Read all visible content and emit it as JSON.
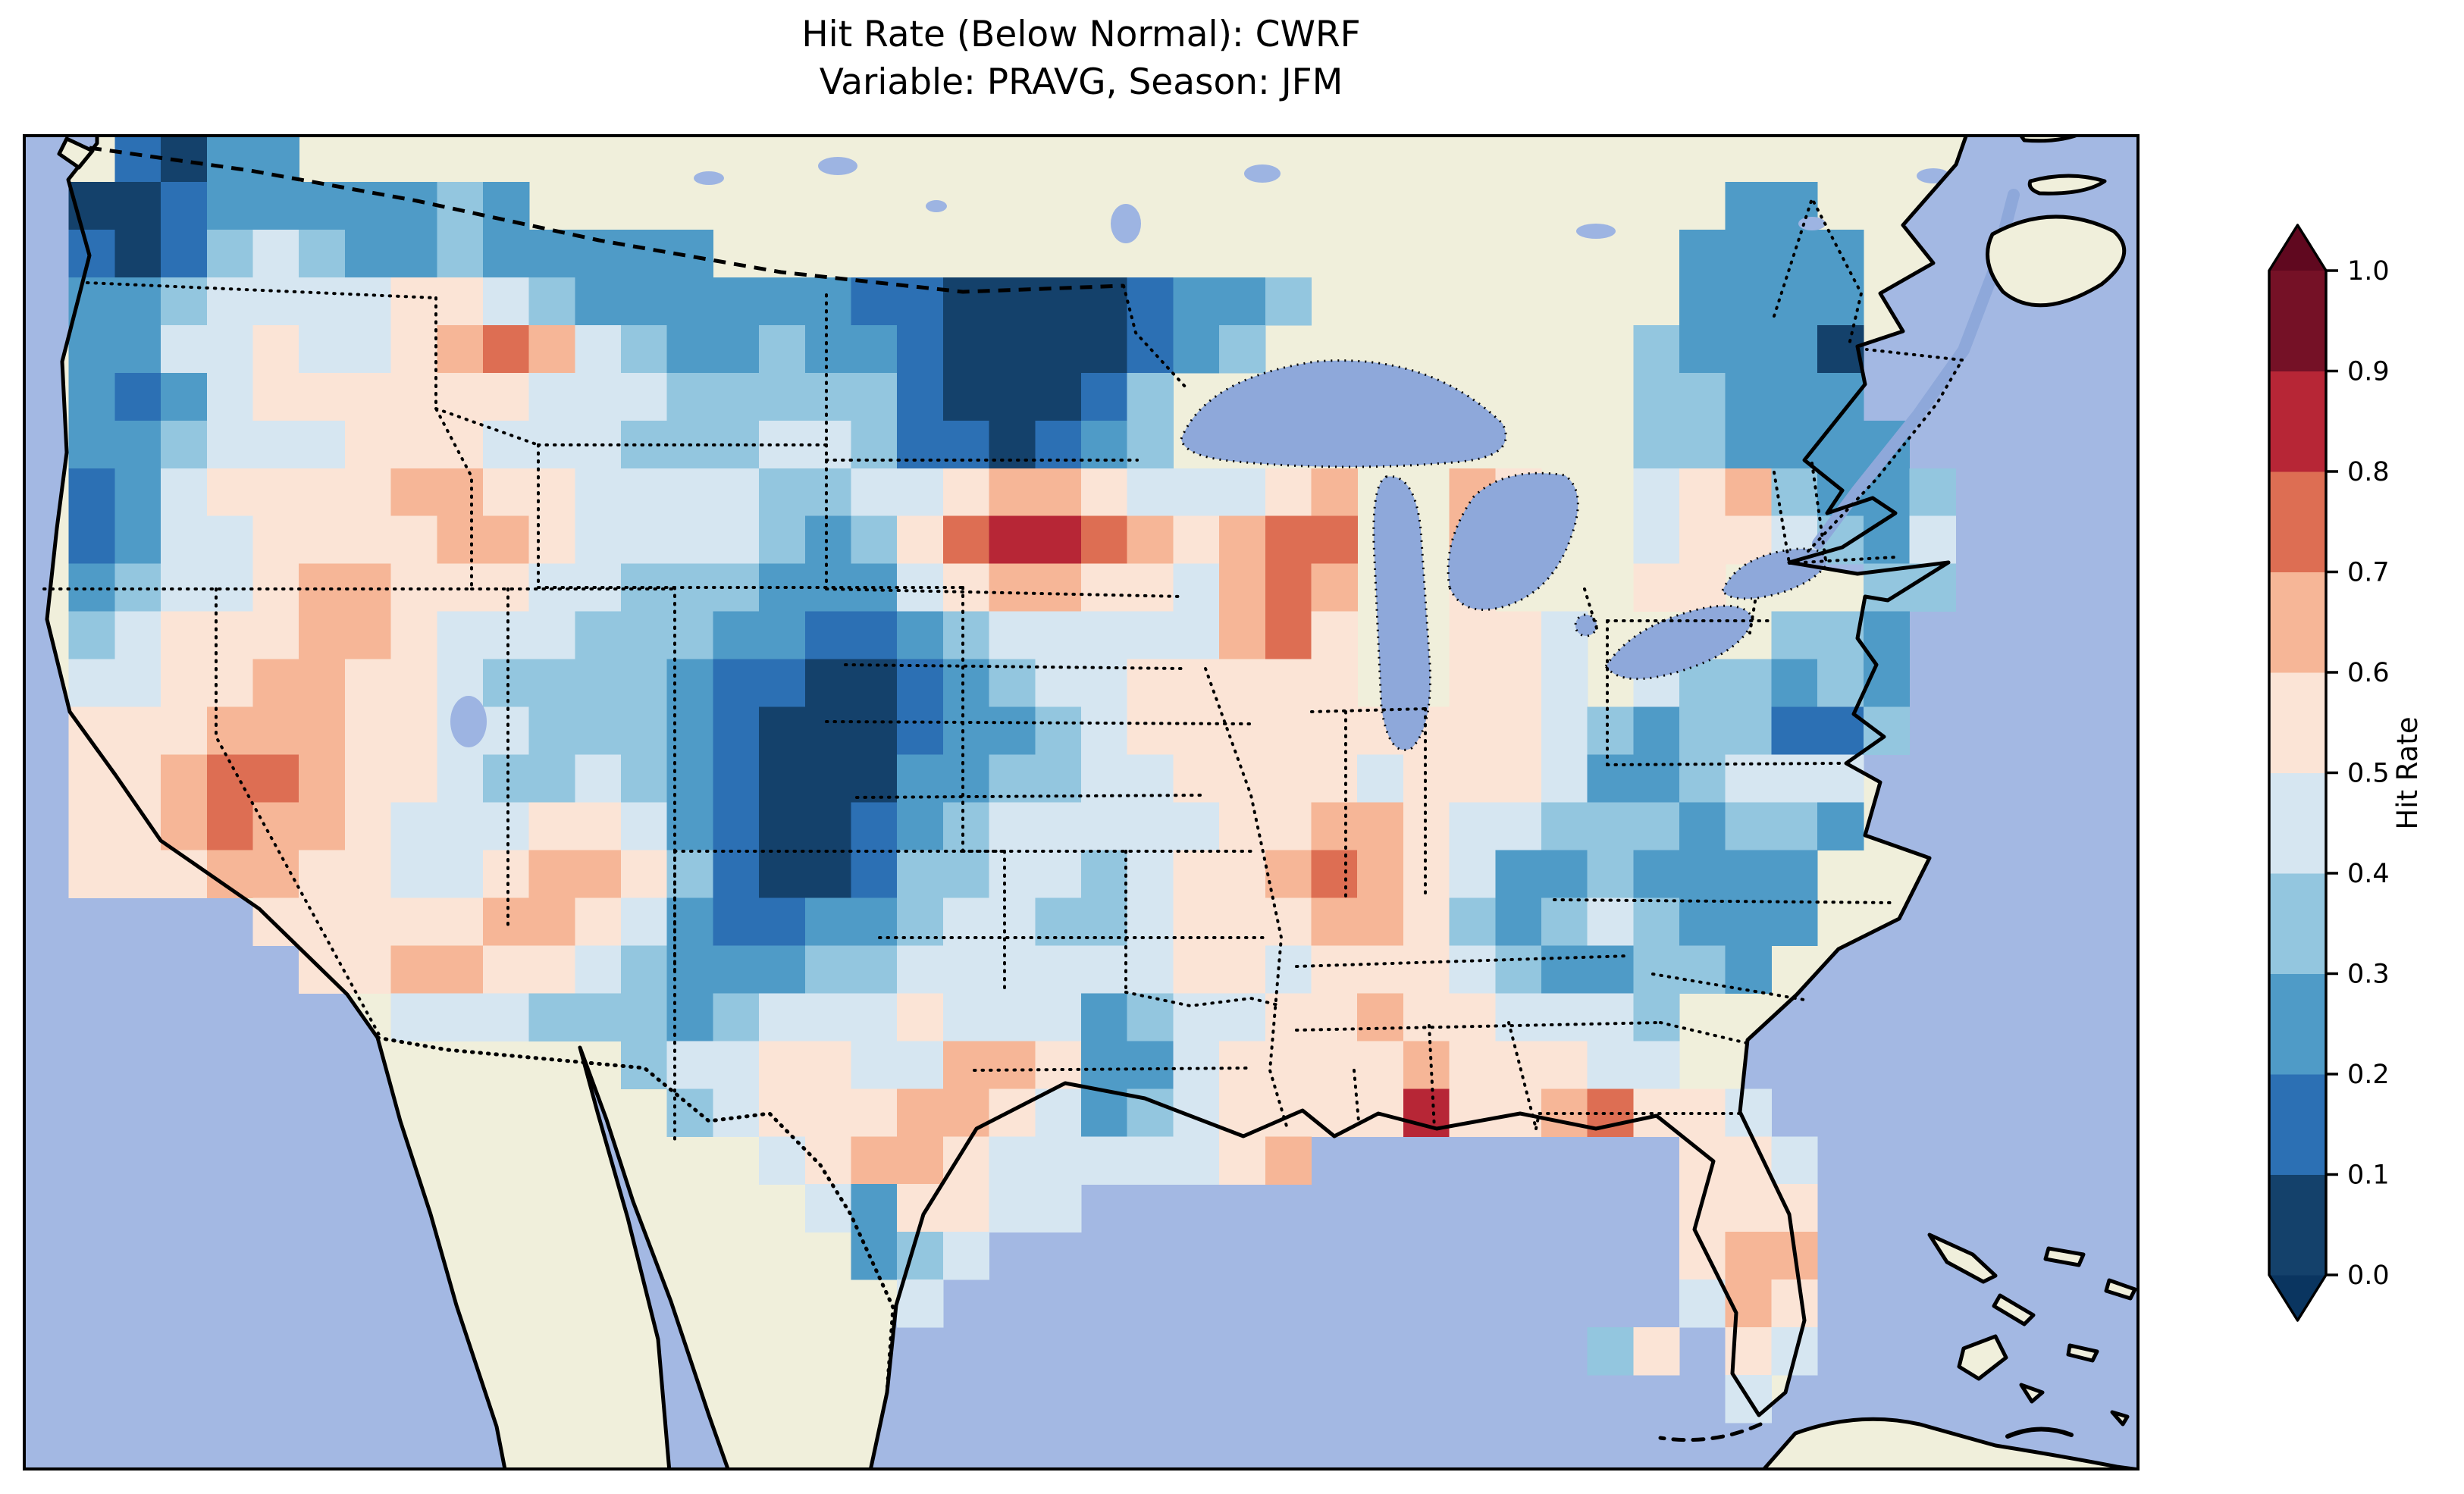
{
  "title": {
    "line1": "Hit Rate (Below Normal): CWRF",
    "line2": "Variable: PRAVG, Season: JFM"
  },
  "colorbar": {
    "label": "Hit Rate",
    "orientation": "vertical",
    "extend": "both",
    "tick_labels": [
      "1.0",
      "0.9",
      "0.8",
      "0.7",
      "0.6",
      "0.5",
      "0.4",
      "0.3",
      "0.2",
      "0.1",
      "0.0"
    ]
  },
  "chart_data": {
    "type": "heatmap",
    "title": "Hit Rate (Below Normal): CWRF",
    "subtitle": "Variable: PRAVG, Season: JFM",
    "metric": "Hit Rate (Below Normal)",
    "model": "CWRF",
    "variable": "PRAVG",
    "season": "JFM",
    "colorbar_label": "Hit Rate",
    "value_range": [
      0.0,
      1.0
    ],
    "region": "Contiguous United States",
    "bin_edges": [
      0.0,
      0.1,
      0.2,
      0.3,
      0.4,
      0.5,
      0.6,
      0.7,
      0.8,
      0.9,
      1.0
    ],
    "bin_colors": [
      "#14416b",
      "#2c70b4",
      "#4f9bc7",
      "#93c6df",
      "#d6e6f1",
      "#fbe4d6",
      "#f6b697",
      "#dd6e53",
      "#b72636",
      "#751126"
    ],
    "under_color": "#0a3560",
    "over_color": "#60081f",
    "map_colors": {
      "ocean": "#a3b8e3",
      "land": "#f0efdb",
      "lakes": "#8ea8da",
      "small_lakes": "#9db4e2"
    },
    "grid": {
      "description": "Hit-rate field over CONUS digitized to a 46x28 grid; each character is one cell, mapped to a value bin via bin_key; '.' = no data",
      "ncols": 46,
      "nrows": 28,
      "bin_key": {
        "0": "0.0-0.1",
        "1": "0.1-0.2",
        "2": "0.2-0.3",
        "3": "0.3-0.4",
        "4": "0.4-0.5",
        "5": "0.5-0.6",
        "6": "0.6-0.7",
        "7": "0.7-0.8",
        "8": "0.8-0.9",
        "9": "0.9-1.0"
      },
      "rows": [
        "..1022........................................",
        ".0012222232..........................22.......",
        ".10134322322222.....................2222......",
        ".223444455432222221100001223........2222......",
        ".22445445676432232210000123........32220......",
        ".212455555544433333100013..........33222......",
        ".223444555444333443110123..........332222.....",
        ".1245555665544443344566544456..65..4563223....",
        ".1244555566544443235788765677..65..4554324....",
        ".2344566555443332224566554676..5...55...33....",
        ".3455566544433322112344444675..554....332.....",
        ".4455665543333211001234455555..554.433232.....",
        ".5556665544333210001223455555555543233113.....",
        ".556776554334321000223344555545554223444......",
        ".556766544455421001234444455665443332332......",
        ".55566554456653100133443455676542232222.......",
        ".....5555566542112234433455566532343222.......",
        "......55665543222334444445545554322332........",
        "........4443332344454442344556554443..........",
        ".............34455446652245555655544..........",
        "..............345556654234555585567554........",
        "................456654444456........554.......",
        ".................425544.............555.......",
        "..................234...............566.......",
        "...................4................465.......",
        "..................................35.54.......",
        ".....................................4........",
        ".............................................."
      ]
    }
  }
}
